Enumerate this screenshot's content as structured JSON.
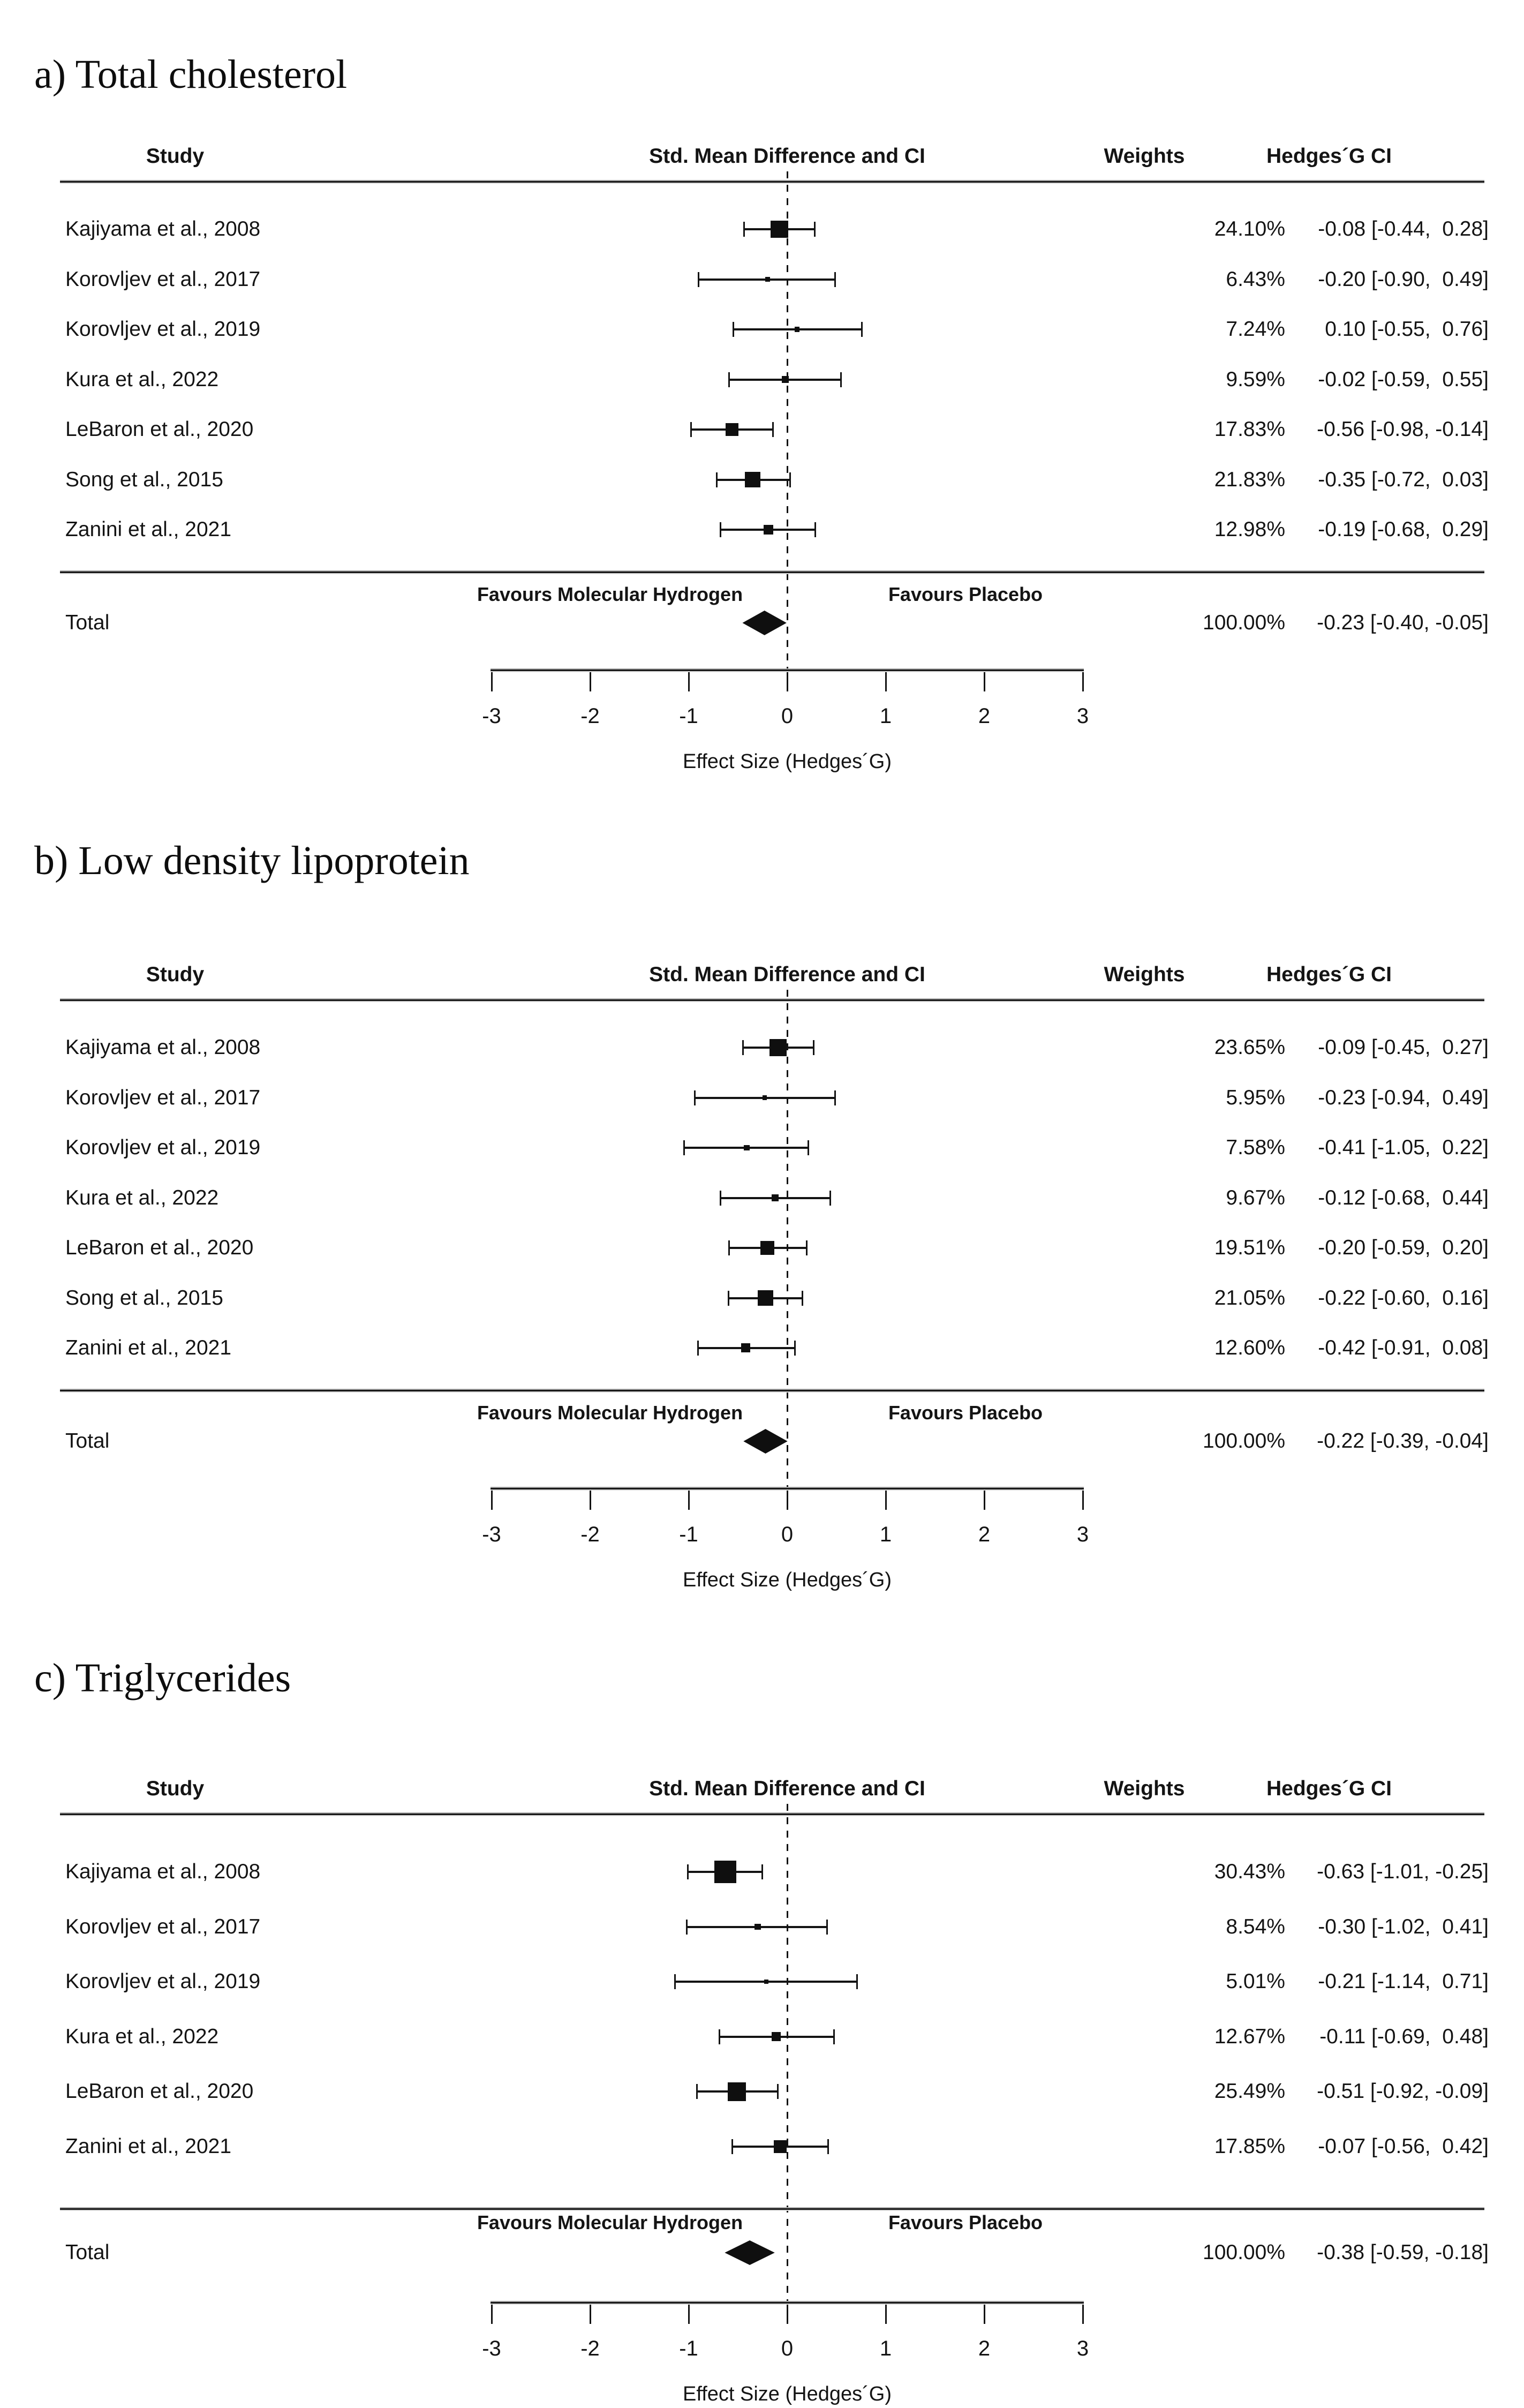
{
  "figure": {
    "colors": {
      "ink": "#141414",
      "background": "#ffffff",
      "marker": "#0f0f0f"
    },
    "columns": {
      "study": "Study",
      "smd": "Std. Mean Difference and CI",
      "weights": "Weights",
      "hedges": "Hedges´G CI"
    },
    "favours_left": "Favours Molecular Hydrogen",
    "favours_right": "Favours Placebo",
    "total_label": "Total",
    "axis_label": "Effect Size (Hedges´G)"
  },
  "chart_data": [
    {
      "type": "forest",
      "title": "a) Total cholesterol",
      "columns": [
        "Study",
        "Std. Mean Difference and CI",
        "Weights",
        "Hedges´G CI"
      ],
      "x_axis": {
        "label": "Effect Size (Hedges´G)",
        "min": -3,
        "max": 3,
        "ticks": [
          -3,
          -2,
          -1,
          0,
          1,
          2,
          3
        ]
      },
      "favours_left": "Favours Molecular Hydrogen",
      "favours_right": "Favours Placebo",
      "studies": [
        {
          "name": "Kajiyama et al., 2008",
          "weight_pct": 24.1,
          "weight_label": "24.10%",
          "est": -0.08,
          "ci_low": -0.44,
          "ci_high": 0.28,
          "ci_label": "-0.08 [-0.44,  0.28]"
        },
        {
          "name": "Korovljev et al., 2017",
          "weight_pct": 6.43,
          "weight_label": "6.43%",
          "est": -0.2,
          "ci_low": -0.9,
          "ci_high": 0.49,
          "ci_label": "-0.20 [-0.90,  0.49]"
        },
        {
          "name": "Korovljev et al., 2019",
          "weight_pct": 7.24,
          "weight_label": "7.24%",
          "est": 0.1,
          "ci_low": -0.55,
          "ci_high": 0.76,
          "ci_label": " 0.10 [-0.55,  0.76]"
        },
        {
          "name": "Kura et al., 2022",
          "weight_pct": 9.59,
          "weight_label": "9.59%",
          "est": -0.02,
          "ci_low": -0.59,
          "ci_high": 0.55,
          "ci_label": "-0.02 [-0.59,  0.55]"
        },
        {
          "name": "LeBaron et al., 2020",
          "weight_pct": 17.83,
          "weight_label": "17.83%",
          "est": -0.56,
          "ci_low": -0.98,
          "ci_high": -0.14,
          "ci_label": "-0.56 [-0.98, -0.14]"
        },
        {
          "name": "Song et al., 2015",
          "weight_pct": 21.83,
          "weight_label": "21.83%",
          "est": -0.35,
          "ci_low": -0.72,
          "ci_high": 0.03,
          "ci_label": "-0.35 [-0.72,  0.03]"
        },
        {
          "name": "Zanini et al., 2021",
          "weight_pct": 12.98,
          "weight_label": "12.98%",
          "est": -0.19,
          "ci_low": -0.68,
          "ci_high": 0.29,
          "ci_label": "-0.19 [-0.68,  0.29]"
        }
      ],
      "total": {
        "name": "Total",
        "weight_pct": 100.0,
        "weight_label": "100.00%",
        "est": -0.23,
        "ci_low": -0.4,
        "ci_high": -0.05,
        "ci_label": "-0.23 [-0.40, -0.05]"
      }
    },
    {
      "type": "forest",
      "title": "b) Low density lipoprotein",
      "columns": [
        "Study",
        "Std. Mean Difference and CI",
        "Weights",
        "Hedges´G CI"
      ],
      "x_axis": {
        "label": "Effect Size (Hedges´G)",
        "min": -3,
        "max": 3,
        "ticks": [
          -3,
          -2,
          -1,
          0,
          1,
          2,
          3
        ]
      },
      "favours_left": "Favours Molecular Hydrogen",
      "favours_right": "Favours Placebo",
      "studies": [
        {
          "name": "Kajiyama et al., 2008",
          "weight_pct": 23.65,
          "weight_label": "23.65%",
          "est": -0.09,
          "ci_low": -0.45,
          "ci_high": 0.27,
          "ci_label": "-0.09 [-0.45,  0.27]"
        },
        {
          "name": "Korovljev et al., 2017",
          "weight_pct": 5.95,
          "weight_label": "5.95%",
          "est": -0.23,
          "ci_low": -0.94,
          "ci_high": 0.49,
          "ci_label": "-0.23 [-0.94,  0.49]"
        },
        {
          "name": "Korovljev et al., 2019",
          "weight_pct": 7.58,
          "weight_label": "7.58%",
          "est": -0.41,
          "ci_low": -1.05,
          "ci_high": 0.22,
          "ci_label": "-0.41 [-1.05,  0.22]"
        },
        {
          "name": "Kura et al., 2022",
          "weight_pct": 9.67,
          "weight_label": "9.67%",
          "est": -0.12,
          "ci_low": -0.68,
          "ci_high": 0.44,
          "ci_label": "-0.12 [-0.68,  0.44]"
        },
        {
          "name": "LeBaron et al., 2020",
          "weight_pct": 19.51,
          "weight_label": "19.51%",
          "est": -0.2,
          "ci_low": -0.59,
          "ci_high": 0.2,
          "ci_label": "-0.20 [-0.59,  0.20]"
        },
        {
          "name": "Song et al., 2015",
          "weight_pct": 21.05,
          "weight_label": "21.05%",
          "est": -0.22,
          "ci_low": -0.6,
          "ci_high": 0.16,
          "ci_label": "-0.22 [-0.60,  0.16]"
        },
        {
          "name": "Zanini et al., 2021",
          "weight_pct": 12.6,
          "weight_label": "12.60%",
          "est": -0.42,
          "ci_low": -0.91,
          "ci_high": 0.08,
          "ci_label": "-0.42 [-0.91,  0.08]"
        }
      ],
      "total": {
        "name": "Total",
        "weight_pct": 100.0,
        "weight_label": "100.00%",
        "est": -0.22,
        "ci_low": -0.39,
        "ci_high": -0.04,
        "ci_label": "-0.22 [-0.39, -0.04]"
      }
    },
    {
      "type": "forest",
      "title": "c) Triglycerides",
      "columns": [
        "Study",
        "Std. Mean Difference and CI",
        "Weights",
        "Hedges´G CI"
      ],
      "x_axis": {
        "label": "Effect Size (Hedges´G)",
        "min": -3,
        "max": 3,
        "ticks": [
          -3,
          -2,
          -1,
          0,
          1,
          2,
          3
        ]
      },
      "favours_left": "Favours Molecular Hydrogen",
      "favours_right": "Favours Placebo",
      "studies": [
        {
          "name": "Kajiyama et al., 2008",
          "weight_pct": 30.43,
          "weight_label": "30.43%",
          "est": -0.63,
          "ci_low": -1.01,
          "ci_high": -0.25,
          "ci_label": "-0.63 [-1.01, -0.25]"
        },
        {
          "name": "Korovljev et al., 2017",
          "weight_pct": 8.54,
          "weight_label": "8.54%",
          "est": -0.3,
          "ci_low": -1.02,
          "ci_high": 0.41,
          "ci_label": "-0.30 [-1.02,  0.41]"
        },
        {
          "name": "Korovljev et al., 2019",
          "weight_pct": 5.01,
          "weight_label": "5.01%",
          "est": -0.21,
          "ci_low": -1.14,
          "ci_high": 0.71,
          "ci_label": "-0.21 [-1.14,  0.71]"
        },
        {
          "name": "Kura et al., 2022",
          "weight_pct": 12.67,
          "weight_label": "12.67%",
          "est": -0.11,
          "ci_low": -0.69,
          "ci_high": 0.48,
          "ci_label": "-0.11 [-0.69,  0.48]"
        },
        {
          "name": "LeBaron et al., 2020",
          "weight_pct": 25.49,
          "weight_label": "25.49%",
          "est": -0.51,
          "ci_low": -0.92,
          "ci_high": -0.09,
          "ci_label": "-0.51 [-0.92, -0.09]"
        },
        {
          "name": "Zanini et al., 2021",
          "weight_pct": 17.85,
          "weight_label": "17.85%",
          "est": -0.07,
          "ci_low": -0.56,
          "ci_high": 0.42,
          "ci_label": "-0.07 [-0.56,  0.42]"
        }
      ],
      "total": {
        "name": "Total",
        "weight_pct": 100.0,
        "weight_label": "100.00%",
        "est": -0.38,
        "ci_low": -0.59,
        "ci_high": -0.18,
        "ci_label": "-0.38 [-0.59, -0.18]"
      }
    }
  ]
}
